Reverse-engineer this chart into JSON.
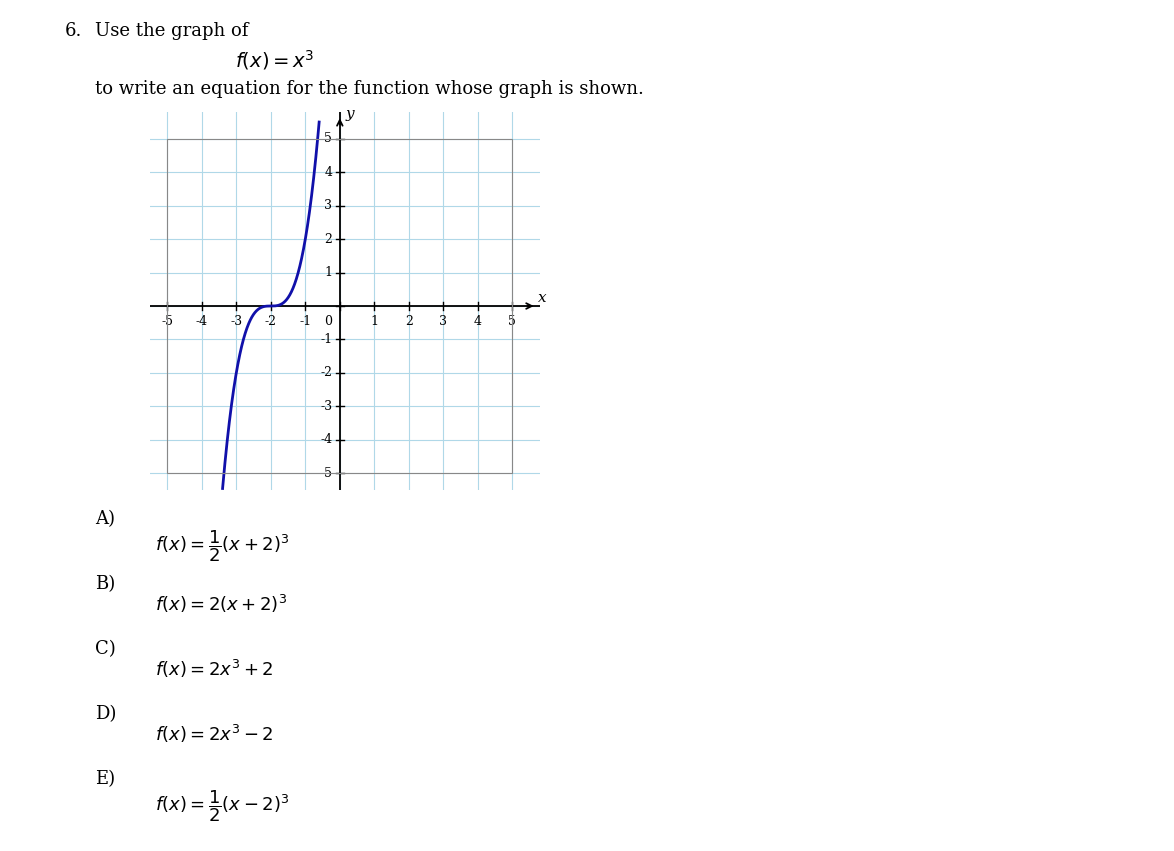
{
  "question_number": "6.",
  "question_text": "Use the graph of",
  "function_label": "$f(x) = x^3$",
  "subtitle": "to write an equation for the function whose graph is shown.",
  "graph_xlim": [
    -5.5,
    5.8
  ],
  "graph_ylim": [
    -5.5,
    5.8
  ],
  "grid_color": "#b0d8e8",
  "grid_bg_color": "#cce8f0",
  "curve_color": "#1010aa",
  "curve_lw": 2.0,
  "tick_fontsize": 9,
  "axis_label_x": "x",
  "axis_label_y": "y",
  "options": [
    {
      "label": "A)",
      "formula": "$f(x) = \\dfrac{1}{2}(x+2)^3$"
    },
    {
      "label": "B)",
      "formula": "$f(x) = 2(x+2)^3$"
    },
    {
      "label": "C)",
      "formula": "$f(x) = 2x^3 + 2$"
    },
    {
      "label": "D)",
      "formula": "$f(x) = 2x^3 - 2$"
    },
    {
      "label": "E)",
      "formula": "$f(x) = \\dfrac{1}{2}(x-2)^3$"
    }
  ],
  "bg_color": "#ffffff",
  "text_color": "#000000"
}
